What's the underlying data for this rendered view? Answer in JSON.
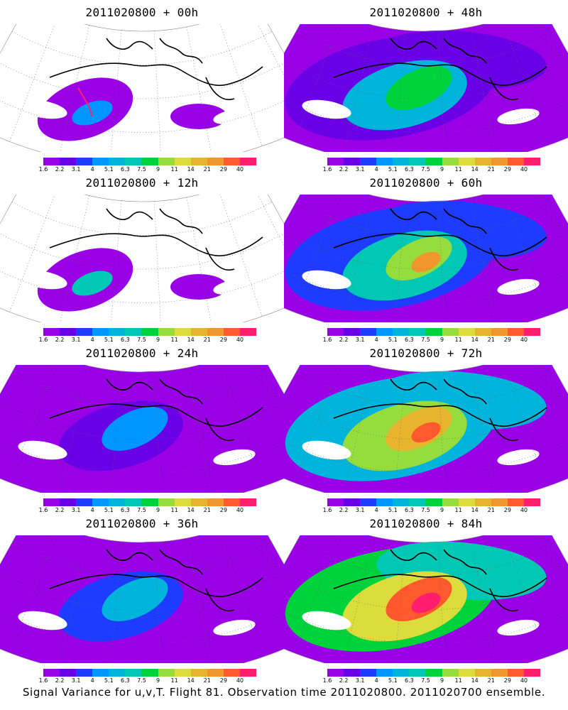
{
  "caption": "Signal Variance for u,v,T. Flight 81. Observation time 2011020800. 2011020700 ensemble.",
  "colorbar": {
    "labels": [
      "1.6",
      "2.2",
      "3.1",
      "4",
      "5.1",
      "6.3",
      "7.5",
      "9",
      "11",
      "14",
      "21",
      "29",
      "40"
    ],
    "colors": [
      "#9a00e6",
      "#6a00e6",
      "#1e3cff",
      "#0096ff",
      "#00b4dc",
      "#00c8b4",
      "#00d23c",
      "#96dc3c",
      "#dcdc3c",
      "#e6b42d",
      "#f0962d",
      "#ff5a2d",
      "#ff1e6e"
    ]
  },
  "panels": [
    {
      "id": "p00",
      "title": "2011020800 + 00h",
      "intensity": 0.05
    },
    {
      "id": "p48",
      "title": "2011020800 + 48h",
      "intensity": 0.55
    },
    {
      "id": "p12",
      "title": "2011020800 + 12h",
      "intensity": 0.18
    },
    {
      "id": "p60",
      "title": "2011020800 + 60h",
      "intensity": 0.65
    },
    {
      "id": "p24",
      "title": "2011020800 + 24h",
      "intensity": 0.3
    },
    {
      "id": "p72",
      "title": "2011020800 + 72h",
      "intensity": 0.8
    },
    {
      "id": "p36",
      "title": "2011020800 + 36h",
      "intensity": 0.42
    },
    {
      "id": "p84",
      "title": "2011020800 + 84h",
      "intensity": 0.95
    }
  ]
}
